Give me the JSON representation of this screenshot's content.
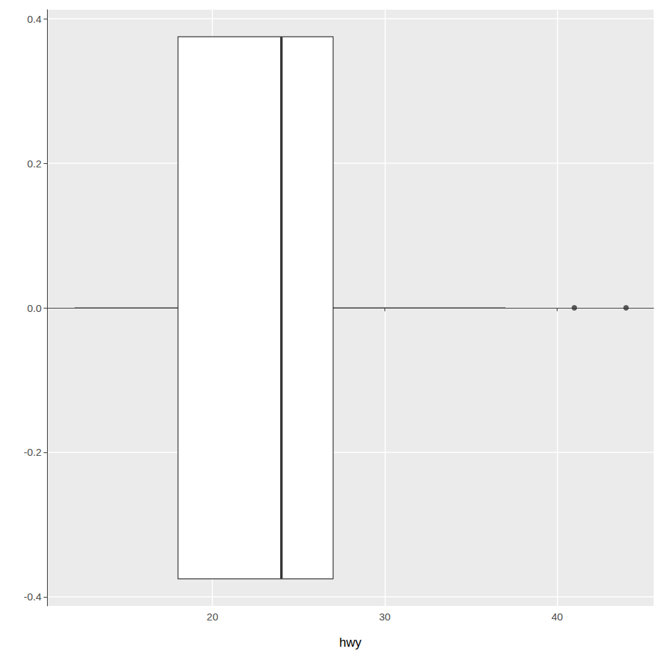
{
  "chart_data": {
    "type": "boxplot",
    "orientation": "horizontal",
    "x_label": "hwy",
    "boxes": [
      {
        "min": 12,
        "q1": 18,
        "median": 24,
        "q3": 27,
        "max": 37,
        "outliers": [
          41,
          44
        ],
        "center": 0,
        "width": 0.75
      }
    ],
    "xlim": [
      10.4,
      45.6
    ],
    "xticks": [
      20,
      30,
      40
    ],
    "ylim": [
      -0.4125,
      0.4125
    ],
    "yticks": [
      -0.4,
      -0.2,
      {
        "value": 0,
        "label": "0.0"
      },
      0.2,
      0.4
    ],
    "grid": true,
    "color": "#ffffff"
  }
}
